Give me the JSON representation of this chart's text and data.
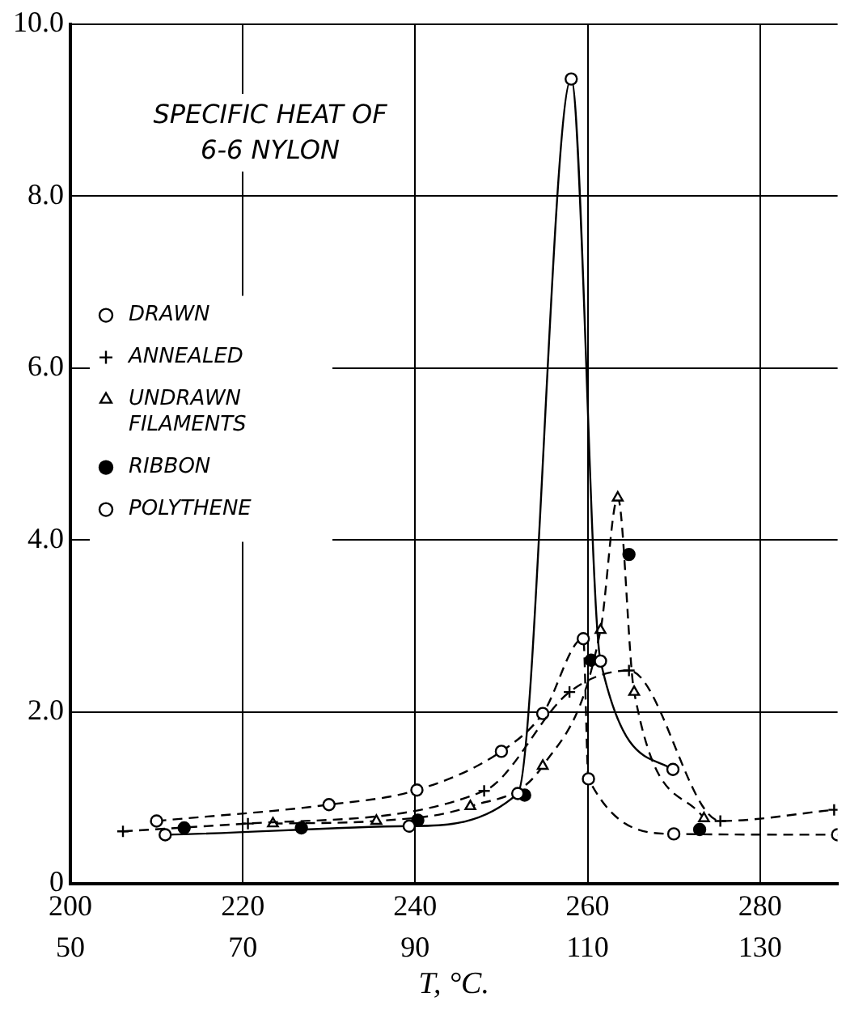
{
  "chart_data": {
    "type": "line",
    "title": "SPECIFIC HEAT OF 6-6 NYLON",
    "xlabel": "T, °C.",
    "xlim": [
      200,
      289
    ],
    "xticks": [
      200,
      220,
      240,
      260,
      280
    ],
    "x2lim": [
      50,
      139
    ],
    "x2ticks": [
      50,
      70,
      90,
      110,
      130
    ],
    "ylim": [
      0,
      10
    ],
    "yticks": [
      {
        "value": 0,
        "label": "0"
      },
      {
        "value": 2,
        "label": "2.0"
      },
      {
        "value": 4,
        "label": "4.0"
      },
      {
        "value": 6,
        "label": "6.0"
      },
      {
        "value": 8,
        "label": "8.0"
      },
      {
        "value": 10,
        "label": "10.0"
      }
    ],
    "grid": true,
    "legend": "top left",
    "series": [
      {
        "name": "DRAWN",
        "color": "#000000",
        "marker": "circle",
        "line_style": "solid",
        "x": [
          211,
          239.3,
          251.9,
          258.1,
          261.5,
          269.9
        ],
        "values": [
          0.57,
          0.67,
          1.05,
          9.36,
          2.59,
          1.33
        ]
      },
      {
        "name": "ANNEALED",
        "color": "#000000",
        "marker": "cross",
        "line_style": "dashed",
        "x": [
          206.1,
          220.6,
          248,
          257.9,
          264.8,
          275.4,
          288.6
        ],
        "values": [
          0.61,
          0.7,
          1.08,
          2.23,
          2.48,
          0.73,
          0.86
        ]
      },
      {
        "name": "UNDRAWN FILAMENTS",
        "color": "#000000",
        "marker": "triangle",
        "line_style": "dashed",
        "x": [
          223.5,
          235.5,
          246.4,
          254.8,
          261.5,
          263.5,
          265.4,
          273.5
        ],
        "values": [
          0.7,
          0.73,
          0.9,
          1.37,
          2.95,
          4.49,
          2.23,
          0.76
        ]
      },
      {
        "name": "RIBBON",
        "type": "scatter",
        "color": "#000000",
        "marker": "circle",
        "x": [
          213.2,
          226.8,
          240.3,
          252.7,
          260.4,
          264.8,
          273
        ],
        "values": [
          0.65,
          0.65,
          0.74,
          1.03,
          2.6,
          3.83,
          0.63
        ]
      },
      {
        "name": "POLYTHENE",
        "color": "#000000",
        "marker": "circle",
        "line_style": "dashed",
        "x": [
          210,
          230,
          240.2,
          250,
          254.8,
          259.5,
          260.1,
          270,
          289
        ],
        "values": [
          0.73,
          0.92,
          1.09,
          1.54,
          1.98,
          2.85,
          1.22,
          0.58,
          0.57
        ]
      }
    ]
  }
}
